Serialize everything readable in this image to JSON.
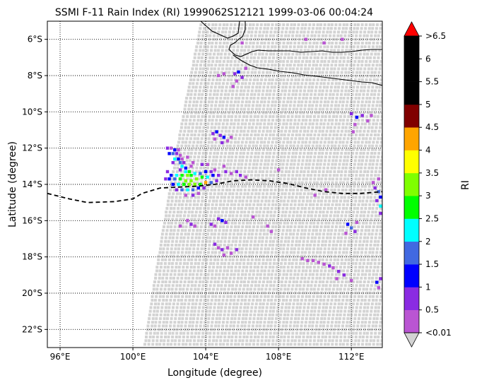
{
  "title": "SSMI F-11 Rain Index (RI) 1999062S12121 1999-03-06 00:04:24",
  "map": {
    "xlabel": "Longitude (degree)",
    "ylabel": "Latitude (degree)",
    "lon_range": [
      95.3,
      113.7
    ],
    "lat_range": [
      -23.0,
      -5.0
    ],
    "x_ticks": [
      {
        "value": 96,
        "label": "96°E"
      },
      {
        "value": 100,
        "label": "100°E"
      },
      {
        "value": 104,
        "label": "104°E"
      },
      {
        "value": 108,
        "label": "108°E"
      },
      {
        "value": 112,
        "label": "112°E"
      }
    ],
    "y_ticks": [
      {
        "value": -6,
        "label": "6°S"
      },
      {
        "value": -8,
        "label": "8°S"
      },
      {
        "value": -10,
        "label": "10°S"
      },
      {
        "value": -12,
        "label": "12°S"
      },
      {
        "value": -14,
        "label": "14°S"
      },
      {
        "value": -16,
        "label": "16°S"
      },
      {
        "value": -18,
        "label": "18°S"
      },
      {
        "value": -20,
        "label": "20°S"
      },
      {
        "value": -22,
        "label": "22°S"
      }
    ],
    "gridlines": "dotted",
    "track": [
      [
        95.3,
        -14.5
      ],
      [
        96.5,
        -14.8
      ],
      [
        97.5,
        -15.0
      ],
      [
        99.0,
        -14.95
      ],
      [
        100.0,
        -14.8
      ],
      [
        100.5,
        -14.5
      ],
      [
        101.5,
        -14.2
      ],
      [
        102.5,
        -14.15
      ],
      [
        103.5,
        -14.1
      ],
      [
        104.5,
        -14.0
      ],
      [
        105.5,
        -13.8
      ],
      [
        106.5,
        -13.75
      ],
      [
        107.5,
        -13.8
      ],
      [
        108.5,
        -13.95
      ],
      [
        109.5,
        -14.2
      ],
      [
        110.5,
        -14.4
      ],
      [
        111.5,
        -14.5
      ],
      [
        112.5,
        -14.5
      ],
      [
        113.7,
        -14.4
      ]
    ],
    "track_style": "dashed black"
  },
  "colorbar": {
    "label": "RI",
    "tick_labels": [
      ">6.5",
      "6",
      "5.5",
      "5",
      "4.5",
      "4",
      "3.5",
      "3",
      "2.5",
      "2",
      "1.5",
      "1",
      "0.5",
      "<0.01"
    ],
    "colors": [
      "#ba55d3",
      "#8a2be2",
      "#0000ff",
      "#4169e1",
      "#00ffff",
      "#00ff00",
      "#7fff00",
      "#ffff00",
      "#ffa500",
      "#800000",
      "#000000",
      "#000000",
      "#000000"
    ],
    "over_color": "#ff0000",
    "under_color": "#d3d3d3"
  },
  "chart_data": {
    "type": "heatmap",
    "title": "SSMI F-11 Rain Index (RI) 1999062S12121 1999-03-06 00:04:24",
    "xlabel": "Longitude (degree)",
    "ylabel": "Latitude (degree)",
    "xlim": [
      95.3,
      113.7
    ],
    "ylim": [
      -23.0,
      -5.0
    ],
    "swath_background_value": "<0.01",
    "rain_pixels": [
      [
        101.9,
        -12.0,
        1
      ],
      [
        102.1,
        -12.0,
        0.5
      ],
      [
        102.3,
        -12.1,
        1.5
      ],
      [
        102.5,
        -12.1,
        0.5
      ],
      [
        102.0,
        -12.3,
        1.5
      ],
      [
        102.2,
        -12.3,
        2
      ],
      [
        102.4,
        -12.3,
        1
      ],
      [
        102.6,
        -12.4,
        0.5
      ],
      [
        102.3,
        -12.6,
        2.5
      ],
      [
        102.5,
        -12.6,
        1.5
      ],
      [
        102.7,
        -12.6,
        0.5
      ],
      [
        102.2,
        -12.8,
        1
      ],
      [
        102.6,
        -12.8,
        2
      ],
      [
        102.8,
        -12.8,
        1
      ],
      [
        102.7,
        -13.0,
        2.5
      ],
      [
        102.9,
        -13.1,
        1.5
      ],
      [
        103.2,
        -13.0,
        0.5
      ],
      [
        102.6,
        -13.2,
        1
      ],
      [
        102.9,
        -13.3,
        2.5
      ],
      [
        103.1,
        -13.3,
        3
      ],
      [
        101.9,
        -13.3,
        1
      ],
      [
        102.1,
        -13.5,
        1.5
      ],
      [
        102.4,
        -13.5,
        2.5
      ],
      [
        102.7,
        -13.5,
        3
      ],
      [
        103.0,
        -13.5,
        3.5
      ],
      [
        103.2,
        -13.5,
        3
      ],
      [
        103.4,
        -13.4,
        2.5
      ],
      [
        103.7,
        -13.4,
        2
      ],
      [
        104.0,
        -13.3,
        1.5
      ],
      [
        104.3,
        -13.3,
        1
      ],
      [
        104.5,
        -13.2,
        0.5
      ],
      [
        101.8,
        -13.7,
        1
      ],
      [
        102.0,
        -13.7,
        1.5
      ],
      [
        102.3,
        -13.7,
        2
      ],
      [
        102.6,
        -13.7,
        3
      ],
      [
        102.9,
        -13.8,
        3.5
      ],
      [
        103.2,
        -13.8,
        3.5
      ],
      [
        103.5,
        -13.7,
        3.5
      ],
      [
        103.8,
        -13.6,
        3
      ],
      [
        104.1,
        -13.6,
        2.5
      ],
      [
        104.4,
        -13.5,
        1.5
      ],
      [
        104.7,
        -13.5,
        1
      ],
      [
        102.2,
        -14.0,
        1.5
      ],
      [
        102.5,
        -14.0,
        2.5
      ],
      [
        102.8,
        -14.0,
        3
      ],
      [
        103.1,
        -14.0,
        3.5
      ],
      [
        103.4,
        -14.0,
        3.5
      ],
      [
        103.7,
        -14.0,
        3
      ],
      [
        104.0,
        -13.9,
        4.5
      ],
      [
        104.3,
        -13.9,
        2
      ],
      [
        104.6,
        -13.8,
        1
      ],
      [
        102.4,
        -14.3,
        1
      ],
      [
        102.7,
        -14.3,
        2
      ],
      [
        103.0,
        -14.3,
        2.5
      ],
      [
        103.3,
        -14.3,
        2
      ],
      [
        103.6,
        -14.2,
        1.5
      ],
      [
        103.9,
        -14.2,
        1
      ],
      [
        102.9,
        -14.6,
        0.5
      ],
      [
        103.3,
        -14.6,
        1
      ],
      [
        103.6,
        -14.5,
        0.5
      ],
      [
        103.0,
        -12.5,
        0.5
      ],
      [
        103.3,
        -12.8,
        0.5
      ],
      [
        103.8,
        -12.9,
        1
      ],
      [
        104.1,
        -12.9,
        0.5
      ],
      [
        104.4,
        -11.2,
        1
      ],
      [
        104.6,
        -11.1,
        1.5
      ],
      [
        104.8,
        -11.3,
        1
      ],
      [
        105.0,
        -11.4,
        1.5
      ],
      [
        104.5,
        -11.5,
        0.5
      ],
      [
        104.9,
        -11.7,
        1
      ],
      [
        105.2,
        -11.6,
        0.5
      ],
      [
        105.4,
        -11.4,
        0.5
      ],
      [
        105.1,
        -13.3,
        1
      ],
      [
        105.4,
        -13.4,
        0.5
      ],
      [
        105.7,
        -13.3,
        1
      ],
      [
        105.9,
        -13.5,
        1
      ],
      [
        106.2,
        -13.6,
        0.5
      ],
      [
        105.0,
        -13.0,
        0.5
      ],
      [
        105.6,
        -7.9,
        1
      ],
      [
        105.8,
        -7.8,
        1.5
      ],
      [
        106.0,
        -8.1,
        1
      ],
      [
        105.7,
        -8.3,
        0.5
      ],
      [
        106.2,
        -7.6,
        0.5
      ],
      [
        105.5,
        -8.6,
        0.5
      ],
      [
        104.7,
        -8.0,
        0.5
      ],
      [
        105.0,
        -7.9,
        0.5
      ],
      [
        104.7,
        -15.9,
        1
      ],
      [
        104.9,
        -16.0,
        1.5
      ],
      [
        105.1,
        -16.1,
        1
      ],
      [
        104.5,
        -16.3,
        0.5
      ],
      [
        104.3,
        -16.2,
        1
      ],
      [
        103.0,
        -16.0,
        0.5
      ],
      [
        103.2,
        -16.2,
        1
      ],
      [
        103.4,
        -16.3,
        0.5
      ],
      [
        102.6,
        -16.3,
        0.5
      ],
      [
        104.5,
        -17.3,
        1
      ],
      [
        104.7,
        -17.5,
        0.5
      ],
      [
        104.9,
        -17.6,
        1
      ],
      [
        105.2,
        -17.5,
        0.5
      ],
      [
        105.4,
        -17.8,
        0.5
      ],
      [
        105.7,
        -17.6,
        1
      ],
      [
        105.0,
        -17.9,
        0.5
      ],
      [
        107.4,
        -16.3,
        0.5
      ],
      [
        107.6,
        -16.6,
        0.5
      ],
      [
        109.3,
        -18.1,
        0.5
      ],
      [
        109.6,
        -18.2,
        0.5
      ],
      [
        109.9,
        -18.2,
        0.5
      ],
      [
        110.2,
        -18.3,
        0.5
      ],
      [
        110.5,
        -18.4,
        0.5
      ],
      [
        110.8,
        -18.5,
        1
      ],
      [
        111.0,
        -18.6,
        0.5
      ],
      [
        111.3,
        -18.8,
        1
      ],
      [
        111.6,
        -19.0,
        1
      ],
      [
        111.2,
        -19.2,
        0.5
      ],
      [
        112.0,
        -19.3,
        0.5
      ],
      [
        111.8,
        -16.2,
        1.5
      ],
      [
        112.0,
        -16.4,
        2
      ],
      [
        112.2,
        -16.6,
        1
      ],
      [
        111.7,
        -16.7,
        0.5
      ],
      [
        112.3,
        -16.1,
        0.5
      ],
      [
        112.0,
        -10.1,
        1
      ],
      [
        112.3,
        -10.3,
        1.5
      ],
      [
        112.6,
        -10.2,
        1
      ],
      [
        112.2,
        -10.7,
        0.5
      ],
      [
        112.9,
        -10.5,
        0.5
      ],
      [
        112.1,
        -11.1,
        0.5
      ],
      [
        113.1,
        -10.2,
        0.5
      ],
      [
        113.3,
        -14.2,
        1
      ],
      [
        113.5,
        -14.4,
        2
      ],
      [
        113.6,
        -14.7,
        1.5
      ],
      [
        113.4,
        -14.9,
        1
      ],
      [
        113.6,
        -15.2,
        2.5
      ],
      [
        113.6,
        -15.6,
        1
      ],
      [
        113.2,
        -13.9,
        0.5
      ],
      [
        113.5,
        -13.7,
        0.5
      ],
      [
        113.4,
        -19.4,
        1.5
      ],
      [
        113.6,
        -19.2,
        1
      ],
      [
        113.5,
        -19.7,
        0.5
      ],
      [
        110.0,
        -14.6,
        0.5
      ],
      [
        110.6,
        -14.3,
        0.5
      ],
      [
        109.5,
        -6.0,
        0.5
      ],
      [
        110.5,
        -6.2,
        0.5
      ],
      [
        111.5,
        -6.0,
        0.5
      ],
      [
        106.0,
        -6.2,
        0.5
      ],
      [
        108.0,
        -13.2,
        0.5
      ],
      [
        106.6,
        -15.8,
        0.5
      ]
    ]
  }
}
